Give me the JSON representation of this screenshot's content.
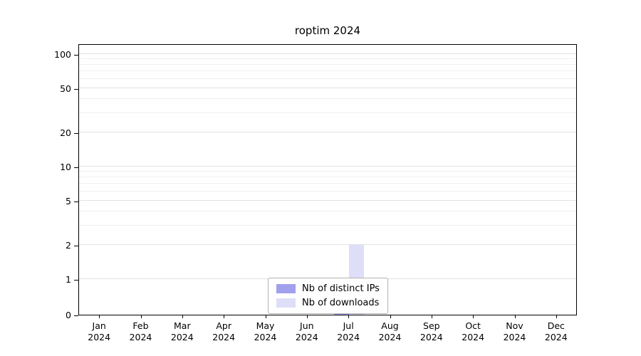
{
  "chart_data": {
    "type": "bar",
    "title": "roptim 2024",
    "categories": [
      "Jan",
      "Feb",
      "Mar",
      "Apr",
      "May",
      "Jun",
      "Jul",
      "Aug",
      "Sep",
      "Oct",
      "Nov",
      "Dec"
    ],
    "year_label": "2024",
    "series": [
      {
        "name": "Nb of distinct IPs",
        "color": "#a0a0ec",
        "values": [
          0,
          0,
          0,
          0,
          0,
          0,
          1,
          0,
          0,
          0,
          0,
          0
        ]
      },
      {
        "name": "Nb of downloads",
        "color": "#dedef8",
        "values": [
          0,
          0,
          0,
          0,
          0,
          0,
          2,
          0,
          0,
          0,
          0,
          0
        ]
      }
    ],
    "yscale": "symlog",
    "yticks_major": [
      0,
      1,
      2,
      5,
      10,
      20,
      50,
      100
    ],
    "yticks_minor": [
      3,
      4,
      6,
      7,
      8,
      9,
      30,
      40,
      60,
      70,
      80,
      90
    ],
    "ylim": [
      0,
      120
    ],
    "xlabel": "",
    "ylabel": "",
    "grid": "horizontal",
    "legend_position": "bottom-center"
  },
  "colors": {
    "grid_minor": "#efefef",
    "grid_major": "#e2e2e2",
    "axis": "#000000",
    "legend_border": "#b3b3b3",
    "background": "#ffffff"
  }
}
